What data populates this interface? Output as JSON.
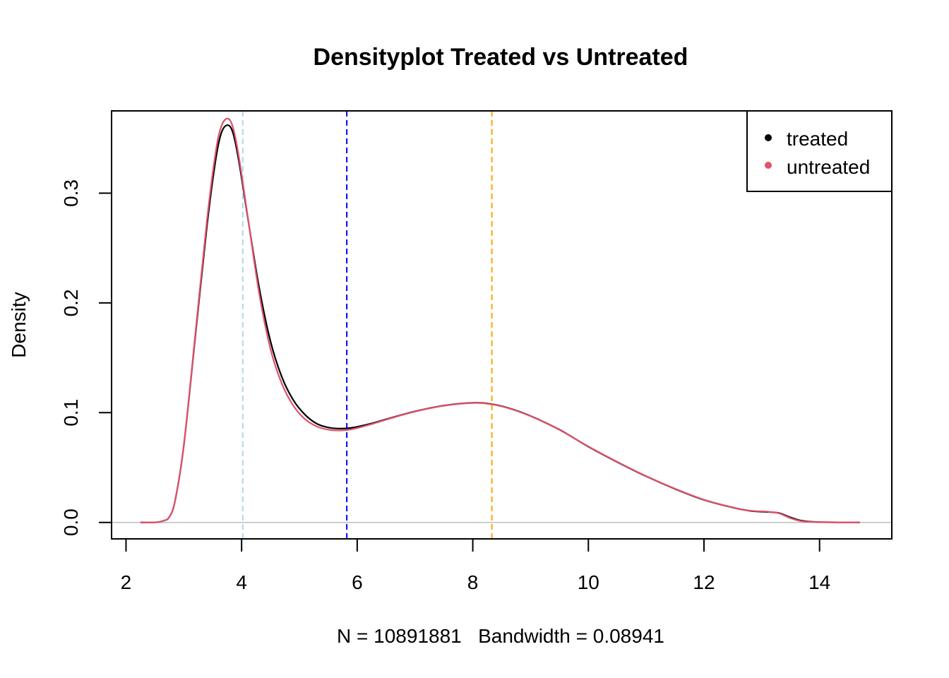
{
  "chart_data": {
    "type": "line",
    "title": "Densityplot Treated vs Untreated",
    "xlabel": "N = 10891881   Bandwidth = 0.08941",
    "ylabel": "Density",
    "xlim": [
      1.75,
      15.25
    ],
    "ylim": [
      -0.015,
      0.375
    ],
    "x_ticks": [
      {
        "value": 2,
        "label": "2"
      },
      {
        "value": 4,
        "label": "4"
      },
      {
        "value": 6,
        "label": "6"
      },
      {
        "value": 8,
        "label": "8"
      },
      {
        "value": 10,
        "label": "10"
      },
      {
        "value": 12,
        "label": "12"
      },
      {
        "value": 14,
        "label": "14"
      }
    ],
    "y_ticks": [
      {
        "value": 0.0,
        "label": "0.0"
      },
      {
        "value": 0.1,
        "label": "0.1"
      },
      {
        "value": 0.2,
        "label": "0.2"
      },
      {
        "value": 0.3,
        "label": "0.3"
      }
    ],
    "grid": false,
    "legend": {
      "position": "top-right",
      "entries": [
        {
          "name": "treated",
          "color": "#000000"
        },
        {
          "name": "untreated",
          "color": "#df536b"
        }
      ]
    },
    "baseline": {
      "y": 0,
      "color": "#bebebe"
    },
    "vlines": [
      {
        "x": 4.02,
        "color": "#add8e6",
        "style": "dashed"
      },
      {
        "x": 5.82,
        "color": "#0000ff",
        "style": "dashed"
      },
      {
        "x": 8.33,
        "color": "#ffa500",
        "style": "dashed"
      }
    ],
    "series": [
      {
        "name": "treated",
        "color": "#000000",
        "points": [
          [
            2.25,
            0
          ],
          [
            2.5,
            0
          ],
          [
            2.65,
            0.0015
          ],
          [
            2.75,
            0.005
          ],
          [
            2.85,
            0.02
          ],
          [
            3.0,
            0.07
          ],
          [
            3.2,
            0.17
          ],
          [
            3.4,
            0.27
          ],
          [
            3.55,
            0.33
          ],
          [
            3.65,
            0.355
          ],
          [
            3.76,
            0.362
          ],
          [
            3.85,
            0.355
          ],
          [
            3.95,
            0.33
          ],
          [
            4.1,
            0.28
          ],
          [
            4.3,
            0.215
          ],
          [
            4.5,
            0.165
          ],
          [
            4.7,
            0.132
          ],
          [
            4.9,
            0.111
          ],
          [
            5.1,
            0.098
          ],
          [
            5.3,
            0.09
          ],
          [
            5.5,
            0.0865
          ],
          [
            5.7,
            0.0855
          ],
          [
            5.9,
            0.0862
          ],
          [
            6.2,
            0.0895
          ],
          [
            6.6,
            0.0955
          ],
          [
            7.0,
            0.1012
          ],
          [
            7.5,
            0.1065
          ],
          [
            8.0,
            0.109
          ],
          [
            8.3,
            0.108
          ],
          [
            8.6,
            0.1045
          ],
          [
            9.0,
            0.097
          ],
          [
            9.5,
            0.0845
          ],
          [
            10.0,
            0.069
          ],
          [
            10.5,
            0.055
          ],
          [
            11.0,
            0.042
          ],
          [
            11.5,
            0.0305
          ],
          [
            12.0,
            0.0205
          ],
          [
            12.5,
            0.0135
          ],
          [
            12.8,
            0.0105
          ],
          [
            13.1,
            0.0095
          ],
          [
            13.3,
            0.0085
          ],
          [
            13.5,
            0.0045
          ],
          [
            13.7,
            0.0015
          ],
          [
            14.0,
            0.0003
          ],
          [
            14.7,
            0
          ]
        ]
      },
      {
        "name": "untreated",
        "color": "#df536b",
        "points": [
          [
            2.25,
            0
          ],
          [
            2.5,
            0
          ],
          [
            2.65,
            0.0015
          ],
          [
            2.75,
            0.005
          ],
          [
            2.85,
            0.02
          ],
          [
            3.0,
            0.07
          ],
          [
            3.2,
            0.172
          ],
          [
            3.4,
            0.275
          ],
          [
            3.55,
            0.337
          ],
          [
            3.65,
            0.361
          ],
          [
            3.76,
            0.368
          ],
          [
            3.85,
            0.36
          ],
          [
            3.95,
            0.334
          ],
          [
            4.1,
            0.281
          ],
          [
            4.3,
            0.21
          ],
          [
            4.5,
            0.158
          ],
          [
            4.7,
            0.126
          ],
          [
            4.9,
            0.106
          ],
          [
            5.1,
            0.094
          ],
          [
            5.3,
            0.0875
          ],
          [
            5.5,
            0.0845
          ],
          [
            5.7,
            0.0838
          ],
          [
            5.9,
            0.0848
          ],
          [
            6.2,
            0.0888
          ],
          [
            6.6,
            0.0952
          ],
          [
            7.0,
            0.101
          ],
          [
            7.5,
            0.1063
          ],
          [
            8.0,
            0.1088
          ],
          [
            8.3,
            0.1078
          ],
          [
            8.6,
            0.1043
          ],
          [
            9.0,
            0.0968
          ],
          [
            9.5,
            0.0843
          ],
          [
            10.0,
            0.0692
          ],
          [
            10.5,
            0.0552
          ],
          [
            11.0,
            0.0422
          ],
          [
            11.5,
            0.0307
          ],
          [
            12.0,
            0.0207
          ],
          [
            12.5,
            0.0137
          ],
          [
            12.8,
            0.0107
          ],
          [
            13.1,
            0.0098
          ],
          [
            13.3,
            0.0082
          ],
          [
            13.5,
            0.0038
          ],
          [
            13.7,
            0.001
          ],
          [
            14.0,
            0.0002
          ],
          [
            14.7,
            0
          ]
        ]
      }
    ]
  }
}
